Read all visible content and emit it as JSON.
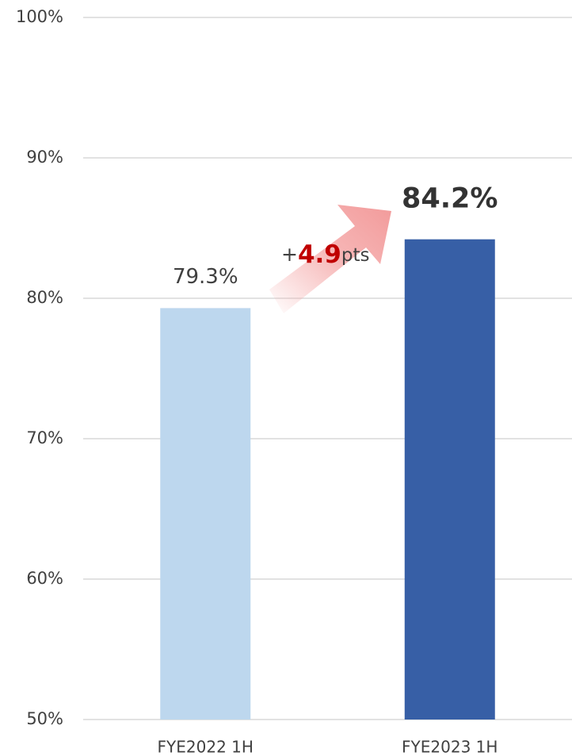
{
  "chart_data": {
    "type": "bar",
    "categories": [
      "FYE2022 1H",
      "FYE2023 1H"
    ],
    "values": [
      79.3,
      84.2
    ],
    "value_labels": [
      "79.3%",
      "84.2%"
    ],
    "colors": [
      "#bdd7ee",
      "#375fa6"
    ],
    "ylim": [
      50,
      100
    ],
    "yticks": [
      {
        "value": 50,
        "label": "50%"
      },
      {
        "value": 60,
        "label": "60%"
      },
      {
        "value": 70,
        "label": "70%"
      },
      {
        "value": 80,
        "label": "80%"
      },
      {
        "value": 90,
        "label": "90%"
      },
      {
        "value": 100,
        "label": "100%"
      }
    ],
    "grid": true,
    "annotation": {
      "parts": [
        "+",
        "4.9",
        "pts"
      ]
    }
  }
}
